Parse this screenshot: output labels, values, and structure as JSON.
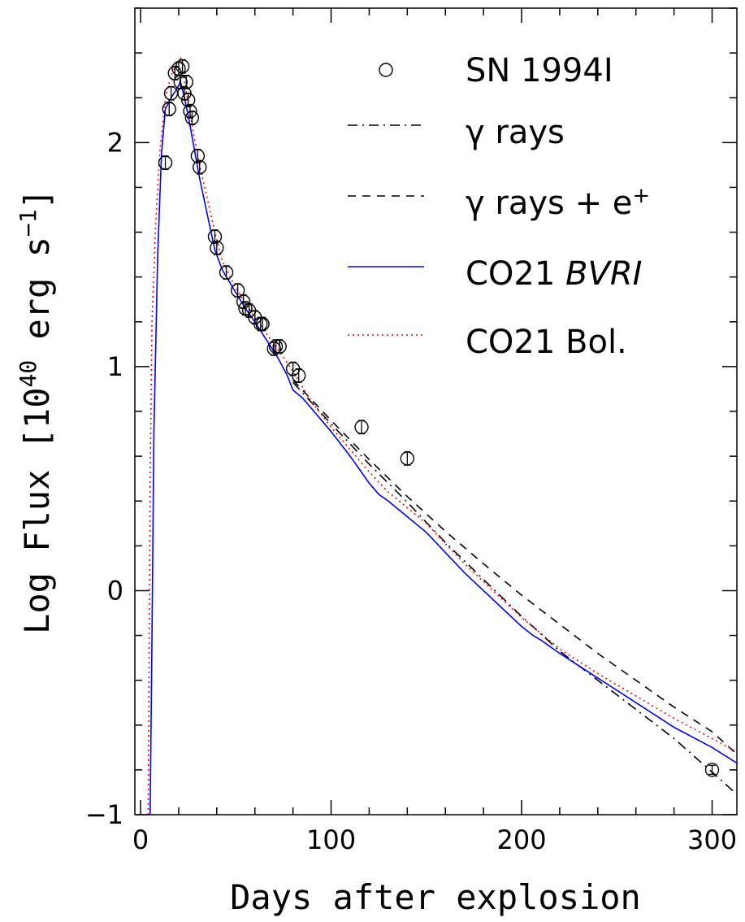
{
  "chart_data": {
    "type": "line",
    "xlabel": "Days after explosion",
    "ylabel_parts": [
      "Log Flux [10",
      "40",
      " erg s",
      "−1",
      "]"
    ],
    "xlim": [
      -3,
      313
    ],
    "ylim": [
      -1,
      2.6
    ],
    "x_ticks": [
      {
        "value": 0,
        "label": "0"
      },
      {
        "value": 100,
        "label": "100"
      },
      {
        "value": 200,
        "label": "200"
      },
      {
        "value": 300,
        "label": "300"
      }
    ],
    "y_ticks": [
      {
        "value": -1,
        "label": "−1"
      },
      {
        "value": 0,
        "label": "0"
      },
      {
        "value": 1,
        "label": "1"
      },
      {
        "value": 2,
        "label": "2"
      }
    ],
    "legend": {
      "placement": "top-right",
      "entries": [
        {
          "id": "obs",
          "text": "SN 1994I",
          "style": "circle",
          "color": "#000000"
        },
        {
          "id": "gamma",
          "text_parts": [
            "γ rays"
          ],
          "style": "dashdot",
          "color": "#000000"
        },
        {
          "id": "gamma_e",
          "text_parts": [
            "γ rays + e",
            "+"
          ],
          "style": "dashed",
          "color": "#000000"
        },
        {
          "id": "bvri",
          "text_parts": [
            "CO21 ",
            "BVRI"
          ],
          "style": "solid",
          "color": "#0000ff"
        },
        {
          "id": "bol",
          "text_parts": [
            "CO21 Bol."
          ],
          "style": "dotted",
          "color": "#ff0000"
        }
      ]
    },
    "series": [
      {
        "id": "gamma",
        "style": "dashdot",
        "color": "#000000",
        "points": [
          [
            80,
            0.93
          ],
          [
            100,
            0.745
          ],
          [
            120,
            0.565
          ],
          [
            140,
            0.395
          ],
          [
            160,
            0.215
          ],
          [
            180,
            0.05
          ],
          [
            200,
            -0.115
          ],
          [
            220,
            -0.27
          ],
          [
            240,
            -0.4
          ],
          [
            260,
            -0.53
          ],
          [
            280,
            -0.66
          ],
          [
            300,
            -0.81
          ],
          [
            313,
            -0.91
          ]
        ]
      },
      {
        "id": "gamma_e",
        "style": "dashed",
        "color": "#000000",
        "points": [
          [
            80,
            0.94
          ],
          [
            100,
            0.76
          ],
          [
            120,
            0.585
          ],
          [
            140,
            0.42
          ],
          [
            160,
            0.265
          ],
          [
            180,
            0.12
          ],
          [
            200,
            -0.02
          ],
          [
            220,
            -0.15
          ],
          [
            240,
            -0.28
          ],
          [
            260,
            -0.4
          ],
          [
            280,
            -0.52
          ],
          [
            300,
            -0.63
          ],
          [
            313,
            -0.73
          ]
        ]
      },
      {
        "id": "bvri",
        "style": "solid",
        "color": "#0000ff",
        "points": [
          [
            5,
            -1
          ],
          [
            6,
            -0.2
          ],
          [
            7,
            0.7
          ],
          [
            9,
            1.5
          ],
          [
            11,
            1.95
          ],
          [
            13,
            2.15
          ],
          [
            16,
            2.2
          ],
          [
            19,
            2.24
          ],
          [
            21,
            2.27
          ],
          [
            23,
            2.2
          ],
          [
            25,
            2.12
          ],
          [
            28,
            1.98
          ],
          [
            31,
            1.84
          ],
          [
            35,
            1.68
          ],
          [
            39,
            1.52
          ],
          [
            43,
            1.43
          ],
          [
            50,
            1.33
          ],
          [
            55,
            1.26
          ],
          [
            60,
            1.2
          ],
          [
            66,
            1.12
          ],
          [
            72,
            1.04
          ],
          [
            77,
            0.96
          ],
          [
            80,
            0.895
          ],
          [
            85,
            0.86
          ],
          [
            90,
            0.81
          ],
          [
            100,
            0.71
          ],
          [
            110,
            0.6
          ],
          [
            120,
            0.48
          ],
          [
            125,
            0.43
          ],
          [
            130,
            0.4
          ],
          [
            140,
            0.33
          ],
          [
            150,
            0.26
          ],
          [
            160,
            0.17
          ],
          [
            170,
            0.08
          ],
          [
            180,
            0.0
          ],
          [
            190,
            -0.08
          ],
          [
            200,
            -0.16
          ],
          [
            206,
            -0.2
          ],
          [
            210,
            -0.22
          ],
          [
            220,
            -0.28
          ],
          [
            240,
            -0.39
          ],
          [
            260,
            -0.5
          ],
          [
            280,
            -0.61
          ],
          [
            300,
            -0.7
          ],
          [
            313,
            -0.77
          ]
        ]
      },
      {
        "id": "bol",
        "style": "dotted",
        "color": "#ff0000",
        "points": [
          [
            4,
            -1
          ],
          [
            5,
            0.5
          ],
          [
            6,
            1.2
          ],
          [
            8,
            1.65
          ],
          [
            10,
            1.95
          ],
          [
            13,
            2.2
          ],
          [
            16,
            2.3
          ],
          [
            19,
            2.35
          ],
          [
            21,
            2.38
          ],
          [
            23,
            2.27
          ],
          [
            25,
            2.18
          ],
          [
            28,
            2.03
          ],
          [
            31,
            1.9
          ],
          [
            35,
            1.75
          ],
          [
            39,
            1.6
          ],
          [
            43,
            1.47
          ],
          [
            50,
            1.35
          ],
          [
            60,
            1.22
          ],
          [
            70,
            1.1
          ],
          [
            80,
            0.98
          ],
          [
            90,
            0.84
          ],
          [
            100,
            0.73
          ],
          [
            110,
            0.63
          ],
          [
            120,
            0.53
          ],
          [
            130,
            0.44
          ],
          [
            140,
            0.37
          ],
          [
            150,
            0.3
          ],
          [
            160,
            0.21
          ],
          [
            170,
            0.12
          ],
          [
            180,
            0.04
          ],
          [
            190,
            -0.04
          ],
          [
            200,
            -0.12
          ],
          [
            210,
            -0.19
          ],
          [
            220,
            -0.26
          ],
          [
            240,
            -0.37
          ],
          [
            260,
            -0.47
          ],
          [
            280,
            -0.57
          ],
          [
            300,
            -0.66
          ],
          [
            313,
            -0.72
          ]
        ]
      }
    ],
    "observations": {
      "id": "obs",
      "points": [
        {
          "x": 13,
          "y": 1.91,
          "err": 0.03
        },
        {
          "x": 15,
          "y": 2.15,
          "err": 0.03
        },
        {
          "x": 16,
          "y": 2.22,
          "err": 0.03
        },
        {
          "x": 18,
          "y": 2.31,
          "err": 0.03
        },
        {
          "x": 20,
          "y": 2.33,
          "err": 0.03
        },
        {
          "x": 21,
          "y": 2.27,
          "err": 0.03
        },
        {
          "x": 22,
          "y": 2.34,
          "err": 0.03
        },
        {
          "x": 23,
          "y": 2.22,
          "err": 0.03
        },
        {
          "x": 24,
          "y": 2.27,
          "err": 0.03
        },
        {
          "x": 25,
          "y": 2.19,
          "err": 0.03
        },
        {
          "x": 26,
          "y": 2.14,
          "err": 0.03
        },
        {
          "x": 27,
          "y": 2.11,
          "err": 0.03
        },
        {
          "x": 30,
          "y": 1.94,
          "err": 0.03
        },
        {
          "x": 31,
          "y": 1.89,
          "err": 0.03
        },
        {
          "x": 39,
          "y": 1.58,
          "err": 0.03
        },
        {
          "x": 40,
          "y": 1.53,
          "err": 0.03
        },
        {
          "x": 45,
          "y": 1.42,
          "err": 0.03
        },
        {
          "x": 51,
          "y": 1.34,
          "err": 0.03
        },
        {
          "x": 54,
          "y": 1.29,
          "err": 0.03
        },
        {
          "x": 55,
          "y": 1.26,
          "err": 0.03
        },
        {
          "x": 57,
          "y": 1.25,
          "err": 0.03
        },
        {
          "x": 60,
          "y": 1.22,
          "err": 0.03
        },
        {
          "x": 63,
          "y": 1.19,
          "err": 0.03
        },
        {
          "x": 64,
          "y": 1.19,
          "err": 0.03
        },
        {
          "x": 70,
          "y": 1.08,
          "err": 0.03
        },
        {
          "x": 71,
          "y": 1.09,
          "err": 0.03
        },
        {
          "x": 73,
          "y": 1.09,
          "err": 0.03
        },
        {
          "x": 80,
          "y": 0.99,
          "err": 0.03
        },
        {
          "x": 83,
          "y": 0.96,
          "err": 0.03
        },
        {
          "x": 116,
          "y": 0.73,
          "err": 0.03
        },
        {
          "x": 140,
          "y": 0.59,
          "err": 0.03
        },
        {
          "x": 300,
          "y": -0.8,
          "err": 0.02
        }
      ]
    }
  }
}
